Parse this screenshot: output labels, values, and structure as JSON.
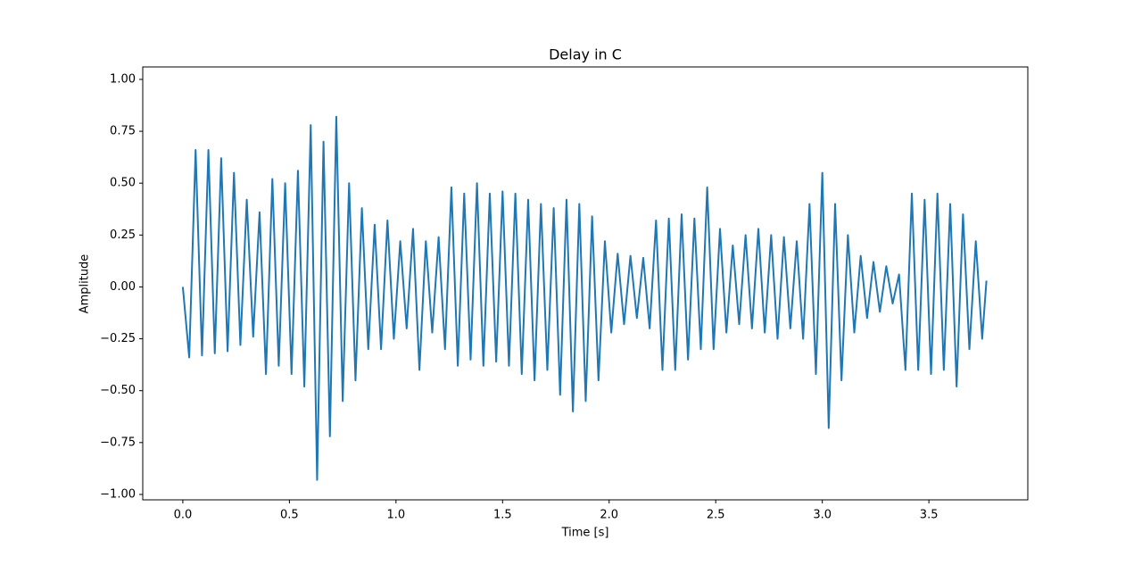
{
  "chart_data": {
    "type": "line",
    "title": "Delay in C",
    "xlabel": "Time [s]",
    "ylabel": "Amplitude",
    "xlim": [
      -0.188,
      3.964
    ],
    "ylim": [
      -1.026,
      1.06
    ],
    "xticks": [
      {
        "value": 0,
        "label": "0.0"
      },
      0.5,
      {
        "value": 1,
        "label": "1.0"
      },
      1.5,
      {
        "value": 2,
        "label": "2.0"
      },
      2.5,
      {
        "value": 3,
        "label": "3.0"
      },
      3.5
    ],
    "yticks": [
      {
        "value": -1,
        "label": "−1.00"
      },
      {
        "value": -0.75,
        "label": "−0.75"
      },
      {
        "value": -0.5,
        "label": "−0.50"
      },
      {
        "value": -0.25,
        "label": "−0.25"
      },
      {
        "value": 0,
        "label": "0.00"
      },
      0.25,
      {
        "value": 0.5,
        "label": "0.50"
      },
      0.75,
      {
        "value": 1,
        "label": "1.00"
      }
    ],
    "x": [
      0,
      0.03,
      0.06,
      0.09,
      0.12,
      0.15,
      0.18,
      0.21,
      0.24,
      0.27,
      0.3,
      0.33,
      0.36,
      0.39,
      0.42,
      0.45,
      0.48,
      0.51,
      0.54,
      0.57,
      0.6,
      0.63,
      0.66,
      0.69,
      0.72,
      0.75,
      0.78,
      0.81,
      0.84,
      0.87,
      0.9,
      0.93,
      0.96,
      0.99,
      1.02,
      1.05,
      1.08,
      1.11,
      1.14,
      1.17,
      1.2,
      1.23,
      1.26,
      1.29,
      1.32,
      1.35,
      1.38,
      1.41,
      1.44,
      1.47,
      1.5,
      1.53,
      1.56,
      1.59,
      1.62,
      1.65,
      1.68,
      1.71,
      1.74,
      1.77,
      1.8,
      1.83,
      1.86,
      1.89,
      1.92,
      1.95,
      1.98,
      2.01,
      2.04,
      2.07,
      2.1,
      2.13,
      2.16,
      2.19,
      2.22,
      2.25,
      2.28,
      2.31,
      2.34,
      2.37,
      2.4,
      2.43,
      2.46,
      2.49,
      2.52,
      2.55,
      2.58,
      2.61,
      2.64,
      2.67,
      2.7,
      2.73,
      2.76,
      2.79,
      2.82,
      2.85,
      2.88,
      2.91,
      2.94,
      2.97,
      3,
      3.03,
      3.06,
      3.09,
      3.12,
      3.15,
      3.18,
      3.21,
      3.24,
      3.27,
      3.3,
      3.33,
      3.36,
      3.39,
      3.42,
      3.45,
      3.48,
      3.51,
      3.54,
      3.57,
      3.6,
      3.63,
      3.66,
      3.69,
      3.72,
      3.75,
      3.77
    ],
    "series": [
      {
        "color": "#1f77b4",
        "values": [
          0,
          -0.34,
          0.66,
          -0.33,
          0.66,
          -0.32,
          0.62,
          -0.31,
          0.55,
          -0.28,
          0.42,
          -0.24,
          0.36,
          -0.42,
          0.52,
          -0.38,
          0.5,
          -0.42,
          0.56,
          -0.48,
          0.78,
          -0.93,
          0.7,
          -0.72,
          0.82,
          -0.55,
          0.5,
          -0.45,
          0.38,
          -0.3,
          0.3,
          -0.3,
          0.32,
          -0.25,
          0.22,
          -0.2,
          0.28,
          -0.4,
          0.22,
          -0.22,
          0.24,
          -0.3,
          0.48,
          -0.38,
          0.45,
          -0.35,
          0.5,
          -0.38,
          0.45,
          -0.36,
          0.46,
          -0.38,
          0.45,
          -0.42,
          0.42,
          -0.45,
          0.4,
          -0.4,
          0.38,
          -0.52,
          0.42,
          -0.6,
          0.4,
          -0.55,
          0.34,
          -0.45,
          0.22,
          -0.22,
          0.16,
          -0.18,
          0.15,
          -0.15,
          0.14,
          -0.2,
          0.32,
          -0.4,
          0.33,
          -0.4,
          0.35,
          -0.35,
          0.33,
          -0.3,
          0.48,
          -0.3,
          0.28,
          -0.22,
          0.2,
          -0.18,
          0.25,
          -0.2,
          0.28,
          -0.22,
          0.25,
          -0.25,
          0.24,
          -0.2,
          0.22,
          -0.25,
          0.4,
          -0.42,
          0.55,
          -0.68,
          0.4,
          -0.45,
          0.25,
          -0.22,
          0.15,
          -0.15,
          0.12,
          -0.12,
          0.1,
          -0.08,
          0.06,
          -0.4,
          0.45,
          -0.4,
          0.42,
          -0.42,
          0.45,
          -0.4,
          0.4,
          -0.48,
          0.35,
          -0.3,
          0.22,
          -0.25,
          0.03
        ]
      }
    ]
  }
}
